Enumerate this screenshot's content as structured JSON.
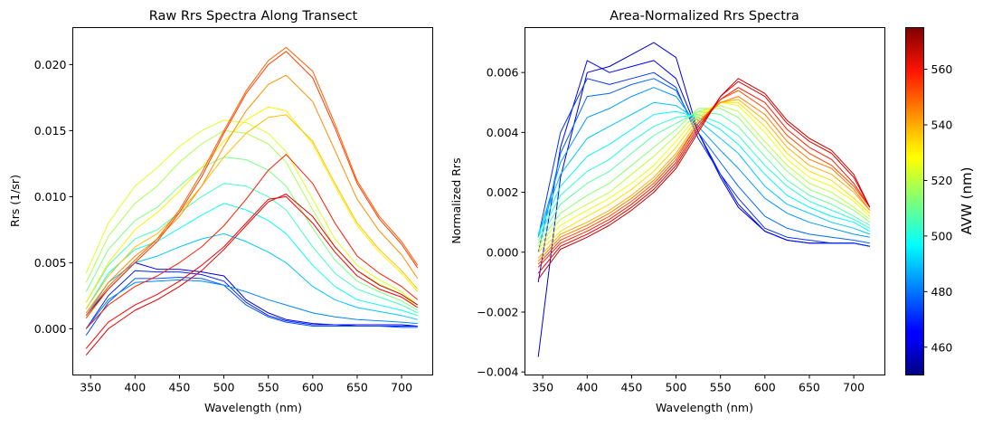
{
  "chart_data": [
    {
      "type": "line",
      "title": "Raw Rrs Spectra Along Transect",
      "xlabel": "Wavelength (nm)",
      "ylabel": "Rrs (1/sr)",
      "xlim": [
        330,
        735
      ],
      "ylim": [
        -0.0035,
        0.0228
      ],
      "xticks": [
        350,
        400,
        450,
        500,
        550,
        600,
        650,
        700
      ],
      "yticks": [
        0.0,
        0.005,
        0.01,
        0.015,
        0.02
      ],
      "ytick_labels": [
        "0.000",
        "0.005",
        "0.010",
        "0.015",
        "0.020"
      ],
      "grid": false,
      "color_by": "AVW (nm)",
      "wavelengths": [
        345,
        370,
        400,
        425,
        450,
        475,
        500,
        525,
        550,
        570,
        600,
        625,
        650,
        675,
        700,
        718
      ],
      "series": [
        {
          "avw": 462,
          "values": [
            0.001,
            0.003,
            0.005,
            0.0045,
            0.0045,
            0.0043,
            0.004,
            0.0022,
            0.0012,
            0.0007,
            0.0004,
            0.0003,
            0.0003,
            0.0003,
            0.0003,
            0.0002
          ]
        },
        {
          "avw": 470,
          "values": [
            0.0,
            0.0025,
            0.0044,
            0.0043,
            0.0043,
            0.0041,
            0.0036,
            0.002,
            0.001,
            0.0006,
            0.0003,
            0.0003,
            0.0002,
            0.0002,
            0.0002,
            0.0002
          ]
        },
        {
          "avw": 476,
          "values": [
            -0.0005,
            0.002,
            0.0038,
            0.0038,
            0.0039,
            0.0038,
            0.0033,
            0.0018,
            0.0009,
            0.0005,
            0.0002,
            0.0002,
            0.0002,
            0.0002,
            0.0001,
            0.0001
          ]
        },
        {
          "avw": 482,
          "values": [
            0.0,
            0.0022,
            0.0035,
            0.0036,
            0.0037,
            0.0036,
            0.0033,
            0.0028,
            0.0022,
            0.0018,
            0.0012,
            0.0009,
            0.0007,
            0.0006,
            0.0005,
            0.0004
          ]
        },
        {
          "avw": 490,
          "values": [
            0.001,
            0.0035,
            0.005,
            0.0055,
            0.0062,
            0.0068,
            0.0072,
            0.0066,
            0.0058,
            0.005,
            0.0032,
            0.0022,
            0.0016,
            0.0013,
            0.001,
            0.0007
          ]
        },
        {
          "avw": 498,
          "values": [
            0.0015,
            0.0042,
            0.006,
            0.0066,
            0.0076,
            0.0086,
            0.0095,
            0.009,
            0.0082,
            0.0072,
            0.0048,
            0.0032,
            0.0022,
            0.0018,
            0.0014,
            0.001
          ]
        },
        {
          "avw": 505,
          "values": [
            0.002,
            0.0048,
            0.0068,
            0.0075,
            0.0088,
            0.01,
            0.011,
            0.0108,
            0.01,
            0.009,
            0.0062,
            0.0042,
            0.003,
            0.0024,
            0.0018,
            0.0012
          ]
        },
        {
          "avw": 512,
          "values": [
            0.0028,
            0.006,
            0.0082,
            0.0092,
            0.0108,
            0.0122,
            0.013,
            0.0128,
            0.012,
            0.0108,
            0.0076,
            0.0052,
            0.0036,
            0.0028,
            0.0021,
            0.0014
          ]
        },
        {
          "avw": 518,
          "values": [
            0.0035,
            0.007,
            0.0095,
            0.0108,
            0.0126,
            0.014,
            0.015,
            0.0148,
            0.014,
            0.0126,
            0.009,
            0.0062,
            0.0044,
            0.0034,
            0.0026,
            0.0016
          ]
        },
        {
          "avw": 524,
          "values": [
            0.0042,
            0.008,
            0.0108,
            0.0122,
            0.0138,
            0.015,
            0.0158,
            0.0156,
            0.0148,
            0.0134,
            0.0098,
            0.0068,
            0.0048,
            0.0037,
            0.0028,
            0.0018
          ]
        },
        {
          "avw": 530,
          "values": [
            0.002,
            0.005,
            0.0075,
            0.0088,
            0.0104,
            0.0122,
            0.0142,
            0.0158,
            0.0168,
            0.0165,
            0.014,
            0.0108,
            0.0078,
            0.0058,
            0.0042,
            0.0028
          ]
        },
        {
          "avw": 536,
          "values": [
            0.0015,
            0.004,
            0.0062,
            0.0072,
            0.0088,
            0.0108,
            0.013,
            0.0148,
            0.016,
            0.0162,
            0.0142,
            0.011,
            0.008,
            0.006,
            0.0044,
            0.003
          ]
        },
        {
          "avw": 542,
          "values": [
            0.0012,
            0.0035,
            0.0055,
            0.0068,
            0.0085,
            0.0108,
            0.0138,
            0.0165,
            0.0185,
            0.0192,
            0.0172,
            0.0135,
            0.0098,
            0.0074,
            0.0056,
            0.0038
          ]
        },
        {
          "avw": 548,
          "values": [
            0.001,
            0.0032,
            0.0052,
            0.0068,
            0.009,
            0.0118,
            0.015,
            0.018,
            0.0203,
            0.0213,
            0.0195,
            0.0155,
            0.0112,
            0.0085,
            0.0066,
            0.0048
          ]
        },
        {
          "avw": 552,
          "values": [
            0.0008,
            0.003,
            0.005,
            0.0066,
            0.0088,
            0.0115,
            0.0148,
            0.0178,
            0.02,
            0.021,
            0.019,
            0.0152,
            0.011,
            0.0083,
            0.0064,
            0.0046
          ]
        },
        {
          "avw": 556,
          "values": [
            0.0,
            0.0018,
            0.0032,
            0.004,
            0.005,
            0.0062,
            0.0078,
            0.0098,
            0.012,
            0.0132,
            0.011,
            0.008,
            0.0055,
            0.0042,
            0.0032,
            0.0022
          ]
        },
        {
          "avw": 560,
          "values": [
            -0.0015,
            0.0005,
            0.0018,
            0.0026,
            0.0036,
            0.0048,
            0.0062,
            0.008,
            0.0098,
            0.01,
            0.008,
            0.0058,
            0.004,
            0.003,
            0.0024,
            0.0016
          ]
        },
        {
          "avw": 563,
          "values": [
            -0.002,
            0.0,
            0.0014,
            0.0022,
            0.0032,
            0.0044,
            0.006,
            0.0078,
            0.0096,
            0.0102,
            0.0085,
            0.0062,
            0.0044,
            0.0033,
            0.0026,
            0.0018
          ]
        }
      ]
    },
    {
      "type": "line",
      "title": "Area-Normalized Rrs Spectra",
      "xlabel": "Wavelength (nm)",
      "ylabel": "Normalized Rrs",
      "xlim": [
        330,
        735
      ],
      "ylim": [
        -0.0041,
        0.0075
      ],
      "xticks": [
        350,
        400,
        450,
        500,
        550,
        600,
        650,
        700
      ],
      "yticks": [
        -0.004,
        -0.002,
        0.0,
        0.002,
        0.004,
        0.006
      ],
      "ytick_labels": [
        "−0.004",
        "−0.002",
        "0.000",
        "0.002",
        "0.004",
        "0.006"
      ],
      "grid": false,
      "color_by": "AVW (nm)",
      "wavelengths": [
        345,
        370,
        400,
        425,
        450,
        475,
        500,
        525,
        550,
        570,
        600,
        625,
        650,
        675,
        700,
        718
      ],
      "series": [
        {
          "avw": 460,
          "values": [
            -0.0035,
            0.0025,
            0.006,
            0.0062,
            0.0066,
            0.007,
            0.0065,
            0.004,
            0.0025,
            0.0015,
            0.0007,
            0.0004,
            0.0003,
            0.0003,
            0.0003,
            0.0002
          ]
        },
        {
          "avw": 466,
          "values": [
            -0.001,
            0.0035,
            0.0064,
            0.006,
            0.0062,
            0.0064,
            0.0058,
            0.004,
            0.0026,
            0.0016,
            0.0007,
            0.0004,
            0.0003,
            0.0003,
            0.0003,
            0.0002
          ]
        },
        {
          "avw": 472,
          "values": [
            0.0005,
            0.004,
            0.0058,
            0.0056,
            0.0058,
            0.006,
            0.0055,
            0.0038,
            0.0026,
            0.0018,
            0.0008,
            0.0005,
            0.0004,
            0.0003,
            0.0003,
            0.0002
          ]
        },
        {
          "avw": 478,
          "values": [
            0.0,
            0.0033,
            0.0052,
            0.0053,
            0.0056,
            0.0058,
            0.0054,
            0.004,
            0.003,
            0.0022,
            0.0012,
            0.0008,
            0.0006,
            0.0005,
            0.0004,
            0.0003
          ]
        },
        {
          "avw": 484,
          "values": [
            0.0005,
            0.003,
            0.0045,
            0.0048,
            0.0052,
            0.0055,
            0.0052,
            0.0042,
            0.0034,
            0.0028,
            0.0018,
            0.0013,
            0.001,
            0.0008,
            0.0006,
            0.0005
          ]
        },
        {
          "avw": 490,
          "values": [
            0.0006,
            0.0026,
            0.0038,
            0.0042,
            0.0046,
            0.005,
            0.0049,
            0.0044,
            0.0038,
            0.0033,
            0.0022,
            0.0016,
            0.0013,
            0.001,
            0.0008,
            0.0006
          ]
        },
        {
          "avw": 496,
          "values": [
            0.0006,
            0.0022,
            0.0032,
            0.0036,
            0.0041,
            0.0046,
            0.0047,
            0.0045,
            0.0041,
            0.0036,
            0.0026,
            0.0019,
            0.0015,
            0.0012,
            0.001,
            0.0007
          ]
        },
        {
          "avw": 502,
          "values": [
            0.0005,
            0.0019,
            0.0027,
            0.0031,
            0.0037,
            0.0042,
            0.0045,
            0.0046,
            0.0043,
            0.0039,
            0.0029,
            0.0022,
            0.0017,
            0.0014,
            0.0011,
            0.0008
          ]
        },
        {
          "avw": 508,
          "values": [
            0.0004,
            0.0016,
            0.0023,
            0.0027,
            0.0033,
            0.0039,
            0.0043,
            0.0047,
            0.0046,
            0.0042,
            0.0032,
            0.0024,
            0.0019,
            0.0016,
            0.0012,
            0.0009
          ]
        },
        {
          "avw": 514,
          "values": [
            0.0003,
            0.0013,
            0.0019,
            0.0023,
            0.0029,
            0.0035,
            0.0041,
            0.0048,
            0.0048,
            0.0045,
            0.0035,
            0.0027,
            0.0021,
            0.0018,
            0.0014,
            0.001
          ]
        },
        {
          "avw": 520,
          "values": [
            0.0002,
            0.0011,
            0.0016,
            0.002,
            0.0026,
            0.0032,
            0.0039,
            0.0047,
            0.0049,
            0.0047,
            0.0037,
            0.0029,
            0.0023,
            0.002,
            0.0015,
            0.0011
          ]
        },
        {
          "avw": 526,
          "values": [
            0.0001,
            0.0009,
            0.0014,
            0.0018,
            0.0023,
            0.0029,
            0.0037,
            0.0046,
            0.005,
            0.0049,
            0.004,
            0.0031,
            0.0025,
            0.0022,
            0.0017,
            0.0012
          ]
        },
        {
          "avw": 532,
          "values": [
            0.0,
            0.0007,
            0.0012,
            0.0016,
            0.0021,
            0.0027,
            0.0035,
            0.0045,
            0.005,
            0.005,
            0.0042,
            0.0033,
            0.0027,
            0.0024,
            0.0018,
            0.0013
          ]
        },
        {
          "avw": 538,
          "values": [
            -0.0002,
            0.0006,
            0.001,
            0.0014,
            0.0019,
            0.0025,
            0.0033,
            0.0044,
            0.005,
            0.0051,
            0.0044,
            0.0035,
            0.0029,
            0.0026,
            0.002,
            0.0014
          ]
        },
        {
          "avw": 544,
          "values": [
            -0.0003,
            0.0005,
            0.0009,
            0.0013,
            0.0018,
            0.0024,
            0.0032,
            0.0043,
            0.005,
            0.0052,
            0.0046,
            0.0037,
            0.0031,
            0.0028,
            0.0021,
            0.0014
          ]
        },
        {
          "avw": 550,
          "values": [
            -0.0004,
            0.0004,
            0.0008,
            0.0012,
            0.0017,
            0.0023,
            0.0031,
            0.0043,
            0.0051,
            0.0054,
            0.0048,
            0.0039,
            0.0033,
            0.0029,
            0.0022,
            0.0015
          ]
        },
        {
          "avw": 556,
          "values": [
            -0.0005,
            0.0003,
            0.0007,
            0.0011,
            0.0016,
            0.0022,
            0.003,
            0.0042,
            0.0051,
            0.0055,
            0.005,
            0.0041,
            0.0035,
            0.0031,
            0.0023,
            0.0015
          ]
        },
        {
          "avw": 562,
          "values": [
            -0.0007,
            0.0002,
            0.0006,
            0.001,
            0.0015,
            0.0021,
            0.0029,
            0.0041,
            0.0052,
            0.0057,
            0.0052,
            0.0043,
            0.0037,
            0.0033,
            0.0025,
            0.0015
          ]
        },
        {
          "avw": 566,
          "values": [
            -0.0009,
            0.0001,
            0.0005,
            0.0009,
            0.0014,
            0.002,
            0.0028,
            0.004,
            0.0052,
            0.0058,
            0.0053,
            0.0044,
            0.0038,
            0.0034,
            0.0026,
            0.0015
          ]
        }
      ]
    }
  ],
  "colorbar": {
    "label": "AVW (nm)",
    "range": [
      450,
      575
    ],
    "ticks": [
      460,
      480,
      500,
      520,
      540,
      560
    ],
    "tick_labels": [
      "460",
      "480",
      "500",
      "520",
      "540",
      "560"
    ],
    "colormap": "jet"
  }
}
